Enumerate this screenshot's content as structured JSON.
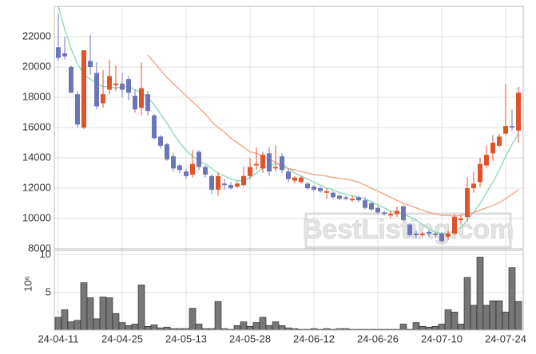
{
  "chart_data": [
    {
      "type": "candlestick",
      "watermark": "BestListing.com",
      "categories": [
        "24-04-11",
        null,
        null,
        null,
        null,
        null,
        null,
        null,
        null,
        null,
        "24-04-25",
        null,
        null,
        null,
        null,
        null,
        null,
        null,
        null,
        null,
        "24-05-13",
        null,
        null,
        null,
        null,
        null,
        null,
        null,
        null,
        null,
        "24-05-28",
        null,
        null,
        null,
        null,
        null,
        null,
        null,
        null,
        null,
        "24-06-12",
        null,
        null,
        null,
        null,
        null,
        null,
        null,
        null,
        null,
        "24-06-26",
        null,
        null,
        null,
        null,
        null,
        null,
        null,
        null,
        null,
        "24-07-10",
        null,
        null,
        null,
        null,
        null,
        null,
        null,
        null,
        null,
        "24-07-24",
        null,
        null
      ],
      "open": [
        21300,
        20900,
        20000,
        18200,
        16000,
        20400,
        19600,
        17600,
        18500,
        18800,
        18900,
        19200,
        18100,
        17300,
        18200,
        16800,
        15400,
        14900,
        14100,
        13500,
        13100,
        12900,
        14400,
        13400,
        12800,
        11900,
        12300,
        12200,
        12100,
        12200,
        12800,
        13500,
        13300,
        14300,
        13300,
        14100,
        13100,
        12500,
        12400,
        12300,
        12100,
        12000,
        11700,
        11700,
        11500,
        11400,
        11200,
        11400,
        11200,
        11000,
        10700,
        10400,
        10200,
        10300,
        10800,
        9600,
        9000,
        8900,
        9100,
        9000,
        9000,
        8800,
        9000,
        9900,
        10100,
        12000,
        12400,
        13500,
        14300,
        14800,
        15600,
        16100,
        15800
      ],
      "high": [
        23500,
        22000,
        20100,
        18400,
        21100,
        22100,
        20300,
        19800,
        20500,
        20100,
        19600,
        19400,
        18500,
        20300,
        18400,
        16900,
        15500,
        15000,
        14300,
        13600,
        13300,
        14500,
        14500,
        13500,
        12900,
        13000,
        12600,
        12400,
        12500,
        13400,
        14000,
        14700,
        14400,
        14700,
        14800,
        14300,
        13300,
        12800,
        12800,
        12400,
        12200,
        12100,
        12000,
        11800,
        11600,
        11500,
        11500,
        11500,
        11400,
        11100,
        10800,
        10500,
        10500,
        10800,
        10900,
        9700,
        9200,
        9100,
        9200,
        9100,
        9100,
        9200,
        10300,
        10200,
        12700,
        13100,
        14000,
        14800,
        15500,
        15600,
        18900,
        17200,
        18700
      ],
      "low": [
        20400,
        20500,
        18300,
        16000,
        15900,
        19500,
        17200,
        17300,
        18200,
        18400,
        18000,
        17800,
        17000,
        16800,
        16800,
        15200,
        14600,
        13800,
        13100,
        13000,
        12600,
        12700,
        13200,
        12700,
        11600,
        11500,
        11900,
        11900,
        12000,
        12100,
        12600,
        13200,
        13000,
        12800,
        13100,
        13000,
        12400,
        12300,
        12300,
        11900,
        11800,
        11700,
        11300,
        11300,
        11200,
        11200,
        11100,
        11100,
        10600,
        10500,
        10300,
        10200,
        10000,
        10100,
        9800,
        8800,
        8700,
        8800,
        8800,
        8700,
        8400,
        8600,
        8900,
        9600,
        9800,
        11700,
        12100,
        13300,
        13800,
        14700,
        15500,
        15800,
        15000
      ],
      "close": [
        20600,
        20700,
        18300,
        16200,
        21100,
        20000,
        17400,
        18200,
        19400,
        18900,
        18500,
        18300,
        17200,
        18600,
        17100,
        15300,
        14800,
        13900,
        13300,
        13200,
        12800,
        13600,
        13400,
        12900,
        11900,
        12800,
        12200,
        12000,
        12300,
        12800,
        13400,
        13600,
        14200,
        13100,
        13400,
        13200,
        12600,
        12700,
        12700,
        12000,
        11900,
        11800,
        11800,
        11400,
        11300,
        11300,
        11300,
        11200,
        10700,
        10600,
        10400,
        10300,
        10300,
        10500,
        9900,
        8900,
        8900,
        9000,
        9000,
        8900,
        8500,
        9000,
        10100,
        10000,
        12000,
        12300,
        13600,
        14200,
        15000,
        15400,
        16100,
        16000,
        18300
      ],
      "up_color": "#e0522a",
      "down_color": "#6c75b5",
      "lines": [
        {
          "color": "#8fd8bd",
          "values": [
            24000,
            22500,
            21200,
            20200,
            19500,
            19200,
            18900,
            18700,
            18700,
            18600,
            18700,
            18700,
            18500,
            18300,
            18000,
            17500,
            16900,
            16300,
            15600,
            15000,
            14500,
            14100,
            13800,
            13600,
            13300,
            13000,
            12800,
            12600,
            12500,
            12500,
            12700,
            13000,
            13300,
            13500,
            13600,
            13600,
            13300,
            13000,
            12800,
            12600,
            12400,
            12200,
            12000,
            11900,
            11700,
            11600,
            11500,
            11400,
            11300,
            11100,
            10900,
            10700,
            10500,
            10400,
            10300,
            10100,
            9900,
            9600,
            9300,
            9100,
            9000,
            9000,
            9200,
            9400,
            9900,
            10400,
            11000,
            11700,
            12400,
            13200,
            14100,
            14900,
            15600
          ]
        },
        {
          "color": "#f0a58c",
          "values": [
            null,
            null,
            null,
            null,
            null,
            null,
            null,
            null,
            null,
            null,
            null,
            null,
            null,
            null,
            20800,
            20300,
            19800,
            19300,
            18900,
            18500,
            18100,
            17700,
            17300,
            16900,
            16400,
            16000,
            15700,
            15300,
            15000,
            14700,
            14400,
            14300,
            14100,
            13900,
            13700,
            13400,
            13300,
            13200,
            13100,
            13000,
            12900,
            12850,
            12800,
            12700,
            12650,
            12600,
            12500,
            12400,
            12200,
            12000,
            11800,
            11600,
            11400,
            11200,
            11000,
            10850,
            10700,
            10550,
            10400,
            10300,
            10200,
            10200,
            10150,
            10200,
            10300,
            10400,
            10550,
            10700,
            10850,
            11050,
            11300,
            11600,
            11900
          ]
        }
      ],
      "ylim": [
        8000,
        24000
      ],
      "yticks": [
        8000,
        10000,
        12000,
        14000,
        16000,
        18000,
        20000,
        22000
      ],
      "grid": true
    },
    {
      "type": "bar",
      "ylabel": "10⁶",
      "values": [
        1.7,
        2.7,
        1.1,
        1.3,
        6.3,
        4.3,
        1.5,
        4.4,
        4.3,
        2.2,
        1.0,
        0.6,
        0.8,
        6.0,
        0.5,
        0.7,
        0.3,
        0.4,
        0.2,
        0.2,
        0.2,
        2.9,
        0.8,
        0.2,
        0.2,
        3.8,
        0.2,
        0.1,
        0.6,
        1.1,
        0.5,
        1.0,
        1.7,
        0.6,
        1.1,
        0.6,
        0.3,
        0.2,
        0.1,
        0.1,
        0.2,
        0.1,
        0.2,
        0.1,
        0.2,
        0.2,
        0.1,
        0.1,
        0.1,
        0.1,
        0.1,
        0.1,
        0.1,
        0.1,
        0.8,
        0.1,
        1.0,
        0.5,
        0.4,
        0.5,
        0.8,
        2.7,
        2.4,
        0.8,
        7.0,
        3.3,
        9.7,
        3.3,
        3.9,
        3.9,
        2.4,
        8.3,
        3.8
      ],
      "color": "#777777",
      "ylim": [
        0,
        10.6
      ],
      "yticks": [
        5,
        10
      ],
      "grid": true
    }
  ]
}
